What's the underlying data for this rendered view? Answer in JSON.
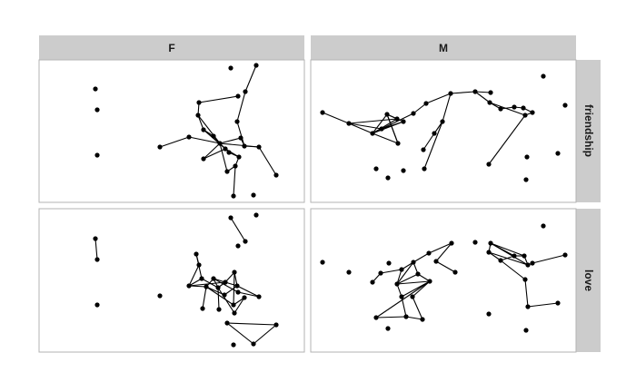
{
  "facets": {
    "columns": [
      "F",
      "M"
    ],
    "rows": [
      "friendship",
      "love"
    ]
  },
  "colors": {
    "strip": "#cccccc",
    "panel_border": "#b3b3b3",
    "mark": "#000000"
  }
}
